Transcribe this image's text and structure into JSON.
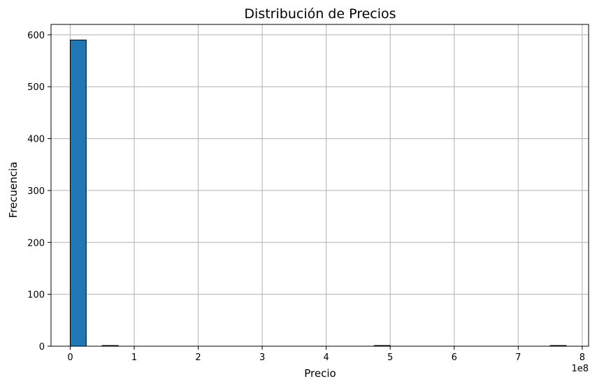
{
  "chart_data": {
    "type": "bar",
    "title": "Distribución de Precios",
    "xlabel": "Precio",
    "ylabel": "Frecuencia",
    "x_offset_text": "1e8",
    "xlim": [
      -0.3,
      8.1
    ],
    "ylim": [
      0,
      620
    ],
    "x_ticks": [
      0,
      1,
      2,
      3,
      4,
      5,
      6,
      7,
      8
    ],
    "y_ticks": [
      0,
      100,
      200,
      300,
      400,
      500,
      600
    ],
    "bin_width": 0.25,
    "bins": [
      {
        "x_start": 0.0,
        "x_end": 0.25,
        "count": 590
      },
      {
        "x_start": 0.25,
        "x_end": 0.5,
        "count": 0
      },
      {
        "x_start": 0.5,
        "x_end": 0.75,
        "count": 1
      },
      {
        "x_start": 0.75,
        "x_end": 1.0,
        "count": 0
      },
      {
        "x_start": 1.0,
        "x_end": 1.25,
        "count": 0
      },
      {
        "x_start": 1.25,
        "x_end": 1.5,
        "count": 0
      },
      {
        "x_start": 1.5,
        "x_end": 1.75,
        "count": 0
      },
      {
        "x_start": 1.75,
        "x_end": 2.0,
        "count": 0
      },
      {
        "x_start": 2.0,
        "x_end": 2.25,
        "count": 0
      },
      {
        "x_start": 2.25,
        "x_end": 2.5,
        "count": 0
      },
      {
        "x_start": 2.5,
        "x_end": 2.75,
        "count": 0
      },
      {
        "x_start": 2.75,
        "x_end": 3.0,
        "count": 0
      },
      {
        "x_start": 3.0,
        "x_end": 3.25,
        "count": 0
      },
      {
        "x_start": 3.25,
        "x_end": 3.5,
        "count": 0
      },
      {
        "x_start": 3.5,
        "x_end": 3.75,
        "count": 0
      },
      {
        "x_start": 3.75,
        "x_end": 4.0,
        "count": 0
      },
      {
        "x_start": 4.0,
        "x_end": 4.25,
        "count": 0
      },
      {
        "x_start": 4.25,
        "x_end": 4.5,
        "count": 0
      },
      {
        "x_start": 4.5,
        "x_end": 4.75,
        "count": 0
      },
      {
        "x_start": 4.75,
        "x_end": 5.0,
        "count": 1
      },
      {
        "x_start": 5.0,
        "x_end": 5.25,
        "count": 0
      },
      {
        "x_start": 5.25,
        "x_end": 5.5,
        "count": 0
      },
      {
        "x_start": 5.5,
        "x_end": 5.75,
        "count": 0
      },
      {
        "x_start": 5.75,
        "x_end": 6.0,
        "count": 0
      },
      {
        "x_start": 6.0,
        "x_end": 6.25,
        "count": 0
      },
      {
        "x_start": 6.25,
        "x_end": 6.5,
        "count": 0
      },
      {
        "x_start": 6.5,
        "x_end": 6.75,
        "count": 0
      },
      {
        "x_start": 6.75,
        "x_end": 7.0,
        "count": 0
      },
      {
        "x_start": 7.0,
        "x_end": 7.25,
        "count": 0
      },
      {
        "x_start": 7.25,
        "x_end": 7.5,
        "count": 0
      },
      {
        "x_start": 7.5,
        "x_end": 7.75,
        "count": 1
      }
    ],
    "grid": true,
    "colors": {
      "bar_fill": "#1f77b4",
      "bar_edge": "#000000",
      "grid": "#b0b0b0",
      "axes": "#000000"
    }
  }
}
